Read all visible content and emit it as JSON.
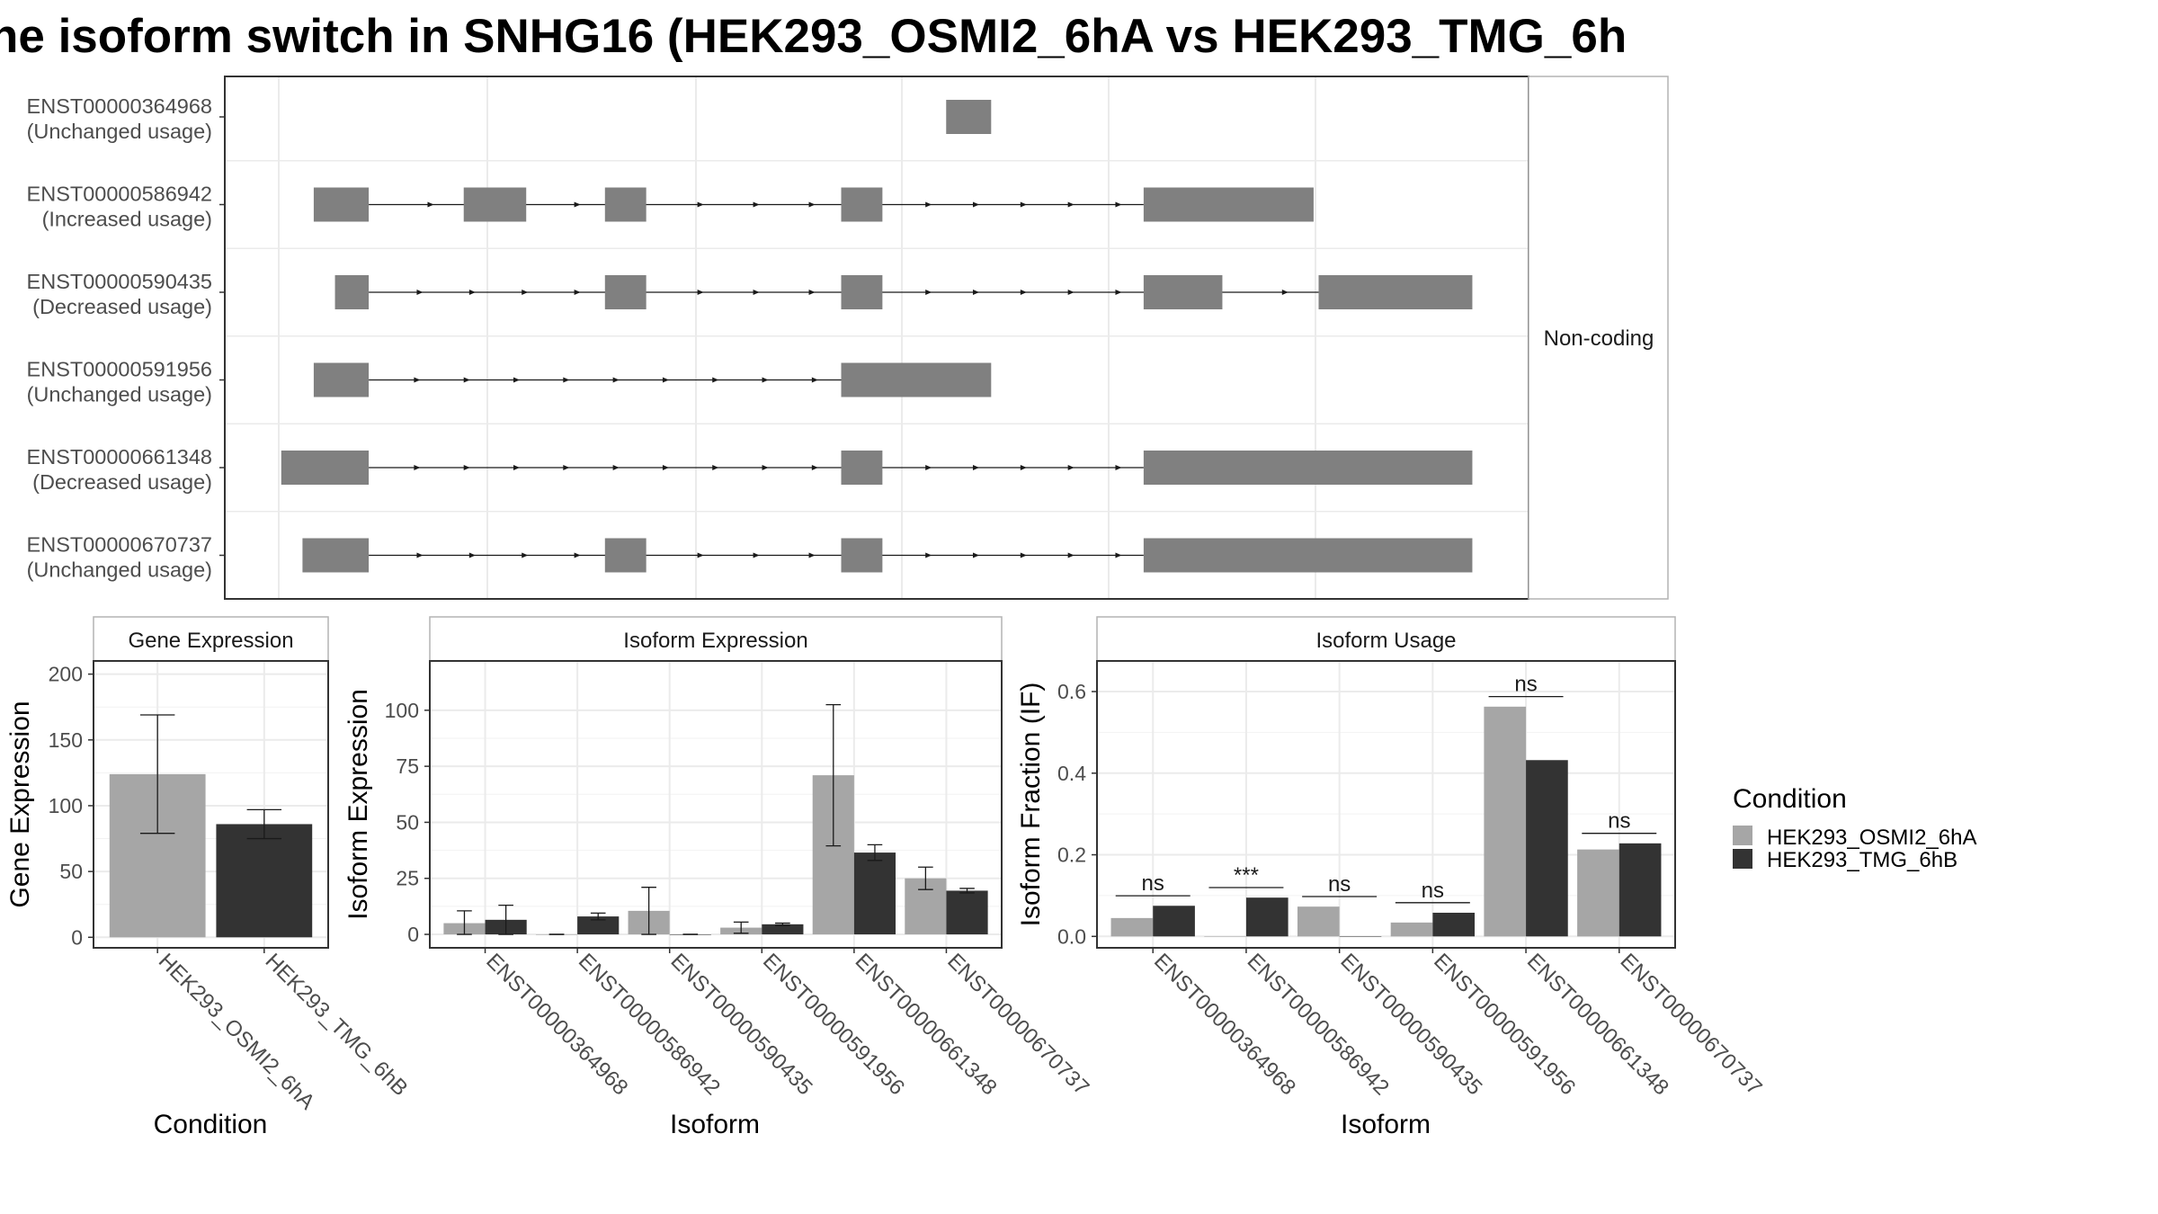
{
  "title": "ne isoform switch in SNHG16 (HEK293_OSMI2_6hA vs HEK293_TMG_6h",
  "colors": {
    "exon": "#808080",
    "condition_a": "#a6a6a6",
    "condition_b": "#333333",
    "panel_border": "#333333",
    "strip_border": "#b3b3b3",
    "grid": "#ebebeb",
    "axis_text": "#4d4d4d",
    "title_text": "#000000"
  },
  "structure": {
    "facet_label": "Non-coding",
    "x_range": [
      0,
      100
    ],
    "transcripts": [
      {
        "id": "ENST00000364968",
        "usage": "(Unchanged usage)",
        "exons": [
          [
            53.4,
            57.0
          ]
        ]
      },
      {
        "id": "ENST00000586942",
        "usage": "(Increased usage)",
        "exons": [
          [
            2.8,
            7.2
          ],
          [
            14.8,
            19.8
          ],
          [
            26.1,
            29.4
          ],
          [
            45.0,
            48.3
          ],
          [
            69.2,
            82.8
          ]
        ]
      },
      {
        "id": "ENST00000590435",
        "usage": "(Decreased usage)",
        "exons": [
          [
            4.5,
            7.2
          ],
          [
            26.1,
            29.4
          ],
          [
            45.0,
            48.3
          ],
          [
            69.2,
            75.5
          ],
          [
            83.2,
            95.5
          ]
        ]
      },
      {
        "id": "ENST00000591956",
        "usage": "(Unchanged usage)",
        "exons": [
          [
            2.8,
            7.2
          ],
          [
            45.0,
            57.0
          ]
        ]
      },
      {
        "id": "ENST00000661348",
        "usage": "(Decreased usage)",
        "exons": [
          [
            0.2,
            7.2
          ],
          [
            45.0,
            48.3
          ],
          [
            69.2,
            95.5
          ]
        ]
      },
      {
        "id": "ENST00000670737",
        "usage": "(Unchanged usage)",
        "exons": [
          [
            1.9,
            7.2
          ],
          [
            26.1,
            29.4
          ],
          [
            45.0,
            48.3
          ],
          [
            69.2,
            95.5
          ]
        ]
      }
    ]
  },
  "legend": {
    "title": "Condition",
    "entries": [
      "HEK293_OSMI2_6hA",
      "HEK293_TMG_6hB"
    ]
  },
  "chart_data": [
    {
      "type": "bar",
      "title": "Gene Expression",
      "xlabel": "Condition",
      "ylabel": "Gene Expression",
      "categories": [
        "HEK293_OSMI2_6hA",
        "HEK293_TMG_6hB"
      ],
      "values": [
        124,
        86
      ],
      "error_low": [
        79,
        75
      ],
      "error_high": [
        169,
        97
      ],
      "ylim": [
        -8,
        210
      ],
      "yticks": [
        0,
        50,
        100,
        150,
        200
      ],
      "ytick_labels": [
        "0",
        "50",
        "100",
        "150",
        "200"
      ]
    },
    {
      "type": "bar",
      "title": "Isoform Expression",
      "xlabel": "Isoform",
      "ylabel": "Isoform Expression",
      "categories": [
        "ENST00000364968",
        "ENST00000586942",
        "ENST00000590435",
        "ENST00000591956",
        "ENST00000661348",
        "ENST00000670737"
      ],
      "series": [
        {
          "name": "HEK293_OSMI2_6hA",
          "values": [
            5,
            0,
            10.5,
            3,
            71,
            25
          ],
          "error_low": [
            0,
            0,
            0,
            0.5,
            39.5,
            20
          ],
          "error_high": [
            10.5,
            0,
            21,
            5.5,
            102.5,
            30
          ]
        },
        {
          "name": "HEK293_TMG_6hB",
          "values": [
            6.5,
            8,
            0,
            4.5,
            36.5,
            19.5
          ],
          "error_low": [
            0,
            6.5,
            0,
            4,
            33,
            18.5
          ],
          "error_high": [
            13,
            9.5,
            0,
            5,
            40,
            20.5
          ]
        }
      ],
      "ylim": [
        -6,
        122
      ],
      "yticks": [
        0,
        25,
        50,
        75,
        100
      ],
      "ytick_labels": [
        "0",
        "25",
        "50",
        "75",
        "100"
      ]
    },
    {
      "type": "bar",
      "title": "Isoform Usage",
      "xlabel": "Isoform",
      "ylabel": "Isoform Fraction (IF)",
      "categories": [
        "ENST00000364968",
        "ENST00000586942",
        "ENST00000590435",
        "ENST00000591956",
        "ENST00000661348",
        "ENST00000670737"
      ],
      "series": [
        {
          "name": "HEK293_OSMI2_6hA",
          "values": [
            0.045,
            0,
            0.073,
            0.034,
            0.563,
            0.213
          ]
        },
        {
          "name": "HEK293_TMG_6hB",
          "values": [
            0.075,
            0.095,
            0,
            0.058,
            0.432,
            0.228
          ]
        }
      ],
      "significance": [
        "ns",
        "***",
        "ns",
        "ns",
        "ns",
        "ns"
      ],
      "ylim": [
        -0.028,
        0.675
      ],
      "yticks": [
        0,
        0.2,
        0.4,
        0.6
      ],
      "ytick_labels": [
        "0.0",
        "0.2",
        "0.4",
        "0.6"
      ]
    }
  ]
}
